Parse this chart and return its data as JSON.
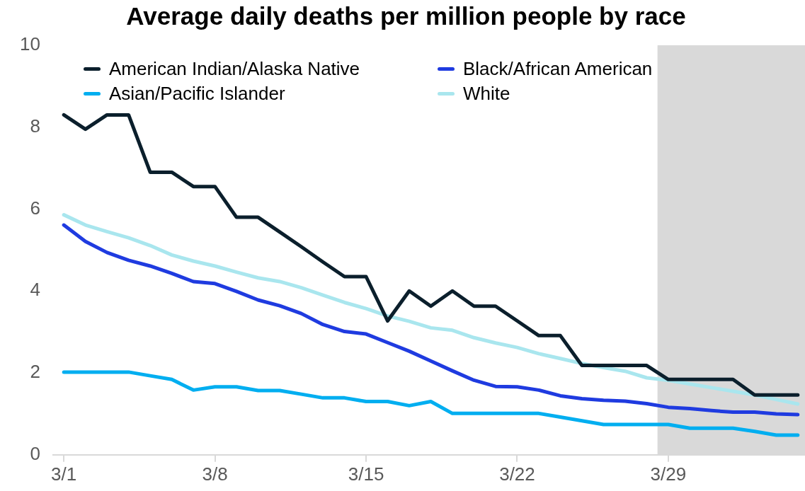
{
  "chart_data": {
    "type": "line",
    "title": "Average daily deaths per million people by race",
    "x": [
      "--03-01",
      "--03-02",
      "--03-03",
      "--03-04",
      "--03-05",
      "--03-06",
      "--03-07",
      "--03-08",
      "--03-09",
      "--03-10",
      "--03-11",
      "--03-12",
      "--03-13",
      "--03-14",
      "--03-15",
      "--03-16",
      "--03-17",
      "--03-18",
      "--03-19",
      "--03-20",
      "--03-21",
      "--03-22",
      "--03-23",
      "--03-24",
      "--03-25",
      "--03-26",
      "--03-27",
      "--03-28",
      "--03-29",
      "--03-30",
      "--03-31",
      "--04-01",
      "--04-02",
      "--04-03",
      "--04-04"
    ],
    "series": [
      {
        "name": "American Indian/Alaska Native",
        "color": "#0b1f2c",
        "values": [
          8.3,
          7.95,
          8.3,
          8.3,
          6.9,
          6.9,
          6.55,
          6.55,
          5.8,
          5.8,
          5.44,
          5.08,
          4.71,
          4.35,
          4.35,
          3.27,
          4.0,
          3.63,
          4.0,
          3.63,
          3.63,
          3.27,
          2.91,
          2.91,
          2.18,
          2.18,
          2.18,
          2.18,
          1.84,
          1.84,
          1.84,
          1.84,
          1.46,
          1.46,
          1.46
        ]
      },
      {
        "name": "Black/African American",
        "color": "#1f3be0",
        "values": [
          5.61,
          5.21,
          4.94,
          4.75,
          4.61,
          4.43,
          4.23,
          4.18,
          3.99,
          3.78,
          3.64,
          3.45,
          3.18,
          3.01,
          2.95,
          2.74,
          2.53,
          2.29,
          2.05,
          1.82,
          1.67,
          1.66,
          1.58,
          1.44,
          1.37,
          1.33,
          1.31,
          1.25,
          1.16,
          1.13,
          1.08,
          1.04,
          1.04,
          1.0,
          0.98
        ]
      },
      {
        "name": "Asian/Pacific Islander",
        "color": "#00aef0",
        "values": [
          2.02,
          2.02,
          2.02,
          2.02,
          1.93,
          1.84,
          1.58,
          1.66,
          1.66,
          1.57,
          1.57,
          1.48,
          1.39,
          1.39,
          1.3,
          1.3,
          1.2,
          1.3,
          1.01,
          1.01,
          1.01,
          1.01,
          1.01,
          0.92,
          0.83,
          0.74,
          0.74,
          0.74,
          0.74,
          0.65,
          0.65,
          0.65,
          0.57,
          0.48,
          0.48
        ]
      },
      {
        "name": "White",
        "color": "#a9e6ee",
        "values": [
          5.86,
          5.61,
          5.45,
          5.3,
          5.11,
          4.88,
          4.73,
          4.61,
          4.46,
          4.32,
          4.23,
          4.08,
          3.9,
          3.72,
          3.57,
          3.39,
          3.26,
          3.1,
          3.04,
          2.86,
          2.73,
          2.62,
          2.47,
          2.35,
          2.23,
          2.13,
          2.04,
          1.88,
          1.82,
          1.73,
          1.64,
          1.55,
          1.46,
          1.35,
          1.24
        ]
      }
    ],
    "xlim": [
      "--02-28T12:00",
      "--04-04T08:00"
    ],
    "xticks": [
      {
        "value": "--03-01",
        "label": "3/1"
      },
      {
        "value": "--03-08",
        "label": "3/8"
      },
      {
        "value": "--03-15",
        "label": "3/15"
      },
      {
        "value": "--03-22",
        "label": "3/22"
      },
      {
        "value": "--03-29",
        "label": "3/29"
      }
    ],
    "ylim": [
      0,
      10
    ],
    "yticks": [
      0,
      2,
      4,
      6,
      8,
      10
    ],
    "bands": [
      {
        "axis": "x",
        "from": "--03-28T12:00",
        "to": "--04-04T08:00",
        "color": "#d9d9d9"
      }
    ],
    "grid": false,
    "legend": "top",
    "line_style": "solid",
    "marker": "none"
  }
}
